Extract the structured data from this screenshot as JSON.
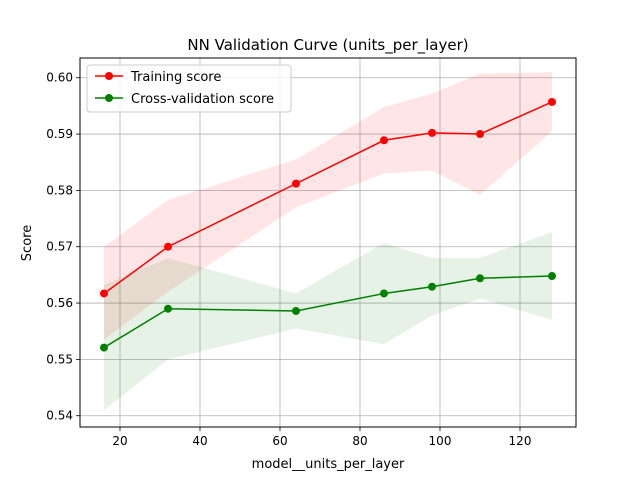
{
  "chart_data": {
    "type": "line",
    "title": "NN Validation Curve (units_per_layer)",
    "xlabel": "model__units_per_layer",
    "ylabel": "Score",
    "xlim": [
      10,
      134
    ],
    "ylim": [
      0.538,
      0.6035
    ],
    "xticks": [
      20,
      40,
      60,
      80,
      100,
      120
    ],
    "xtick_labels": [
      "20",
      "40",
      "60",
      "80",
      "100",
      "120"
    ],
    "yticks": [
      0.54,
      0.55,
      0.56,
      0.57,
      0.58,
      0.59,
      0.6
    ],
    "ytick_labels": [
      "0.54",
      "0.55",
      "0.56",
      "0.57",
      "0.58",
      "0.59",
      "0.60"
    ],
    "grid": true,
    "legend_position": "upper-left",
    "x": [
      16,
      32,
      64,
      86,
      98,
      110,
      128
    ],
    "series": [
      {
        "name": "Training score",
        "color": "#ff0000",
        "band_color": "#ffcccc",
        "values": [
          0.5617,
          0.57,
          0.5812,
          0.5889,
          0.5902,
          0.59,
          0.5957
        ],
        "lower": [
          0.5535,
          0.562,
          0.577,
          0.583,
          0.5835,
          0.5792,
          0.5905
        ],
        "upper": [
          0.57,
          0.5783,
          0.5855,
          0.5948,
          0.5972,
          0.6007,
          0.601
        ]
      },
      {
        "name": "Cross-validation score",
        "color": "#008000",
        "band_color": "#cce6cc",
        "values": [
          0.5521,
          0.559,
          0.5586,
          0.5617,
          0.5629,
          0.5644,
          0.5648
        ],
        "lower": [
          0.541,
          0.55,
          0.5555,
          0.5527,
          0.5578,
          0.5608,
          0.557
        ],
        "upper": [
          0.5632,
          0.568,
          0.5617,
          0.5707,
          0.568,
          0.568,
          0.5726
        ]
      }
    ]
  }
}
